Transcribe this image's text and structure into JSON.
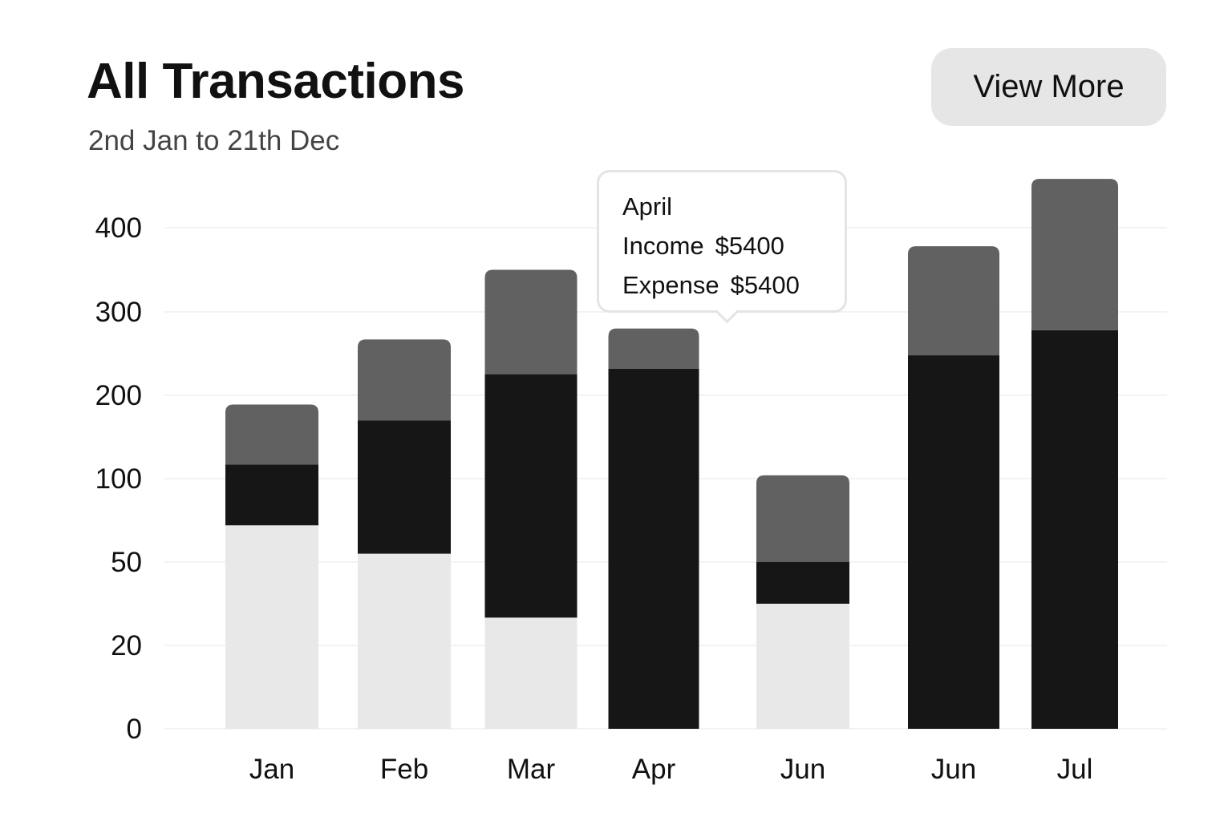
{
  "header": {
    "title": "All Transactions",
    "subtitle": "2nd Jan to 21th Dec",
    "view_more_label": "View More"
  },
  "tooltip": {
    "title": "April",
    "income_label": "Income",
    "income_value": "$5400",
    "expense_label": "Expense",
    "expense_value": "$5400"
  },
  "colors": {
    "bottom_segment": "#e8e8e8",
    "middle_segment": "#161616",
    "top_segment": "#616161",
    "gridline": "#ececec",
    "button_bg": "#e6e6e6"
  },
  "chart_data": {
    "type": "bar",
    "stacked": true,
    "categories": [
      "Jan",
      "Feb",
      "Mar",
      "Apr",
      "Jun",
      "Jun",
      "Jul"
    ],
    "y_ticks": [
      0,
      20,
      50,
      100,
      200,
      300,
      400
    ],
    "y_scale": "piecewise-linear between listed ticks",
    "grid": true,
    "legend": "none",
    "series": [
      {
        "values": [
          72,
          55,
          30,
          0,
          35,
          0,
          0
        ]
      },
      {
        "values": [
          45,
          115,
          195,
          232,
          15,
          248,
          278
        ]
      },
      {
        "values": [
          72,
          97,
          125,
          48,
          54,
          130,
          180
        ]
      }
    ],
    "totals": [
      189,
      267,
      350,
      280,
      104,
      378,
      458
    ]
  }
}
